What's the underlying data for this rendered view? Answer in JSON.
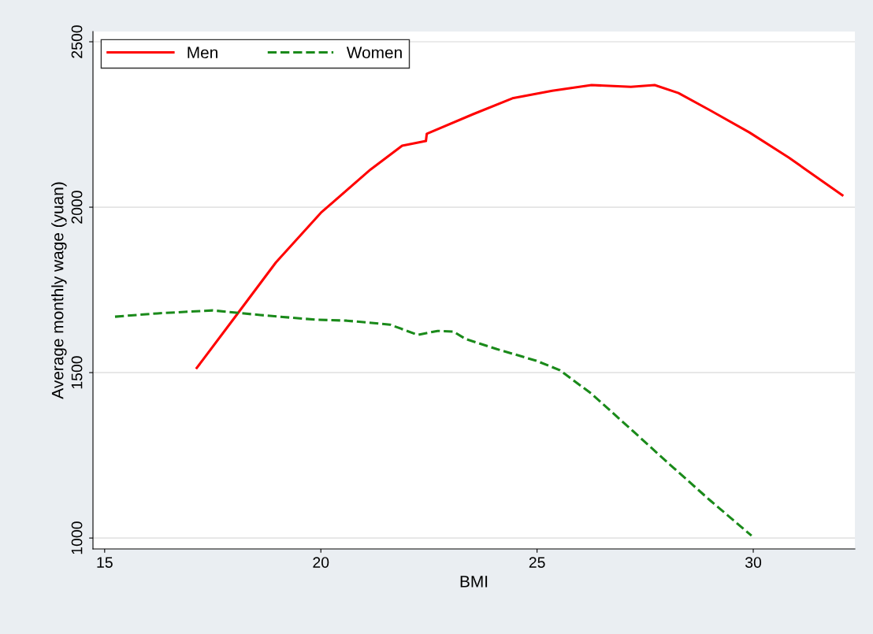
{
  "chart_data": {
    "type": "line",
    "xlabel": "BMI",
    "ylabel": "Average monthly wage (yuan)",
    "xlim": [
      14.73,
      32.35
    ],
    "ylim": [
      967,
      2531
    ],
    "xticks": [
      15,
      20,
      25,
      30
    ],
    "yticks": [
      1000,
      1500,
      2000,
      2500
    ],
    "grid": "y",
    "legend": "top left",
    "series": [
      {
        "name": "Men",
        "color": "#ff0000",
        "line_style": "solid",
        "x": [
          17.13,
          18.05,
          18.96,
          20.0,
          21.15,
          21.88,
          22.43,
          22.45,
          23.52,
          24.43,
          25.35,
          26.26,
          27.17,
          27.72,
          28.27,
          29.0,
          29.91,
          30.82,
          32.06
        ],
        "values": [
          1514,
          1674,
          1833,
          1983,
          2114,
          2186,
          2200,
          2222,
          2281,
          2329,
          2352,
          2369,
          2364,
          2369,
          2345,
          2293,
          2226,
          2150,
          2036
        ]
      },
      {
        "name": "Women",
        "color": "#1a8a1a",
        "line_style": "dashed",
        "x": [
          15.24,
          16.22,
          17.5,
          18.6,
          19.87,
          20.6,
          21.6,
          22.24,
          22.7,
          23.07,
          23.34,
          24.07,
          24.98,
          25.53,
          26.26,
          27.17,
          28.08,
          29.0,
          29.96
        ],
        "values": [
          1669,
          1679,
          1688,
          1674,
          1660,
          1657,
          1645,
          1614,
          1626,
          1624,
          1602,
          1571,
          1536,
          1507,
          1436,
          1329,
          1221,
          1114,
          1007
        ]
      }
    ]
  }
}
